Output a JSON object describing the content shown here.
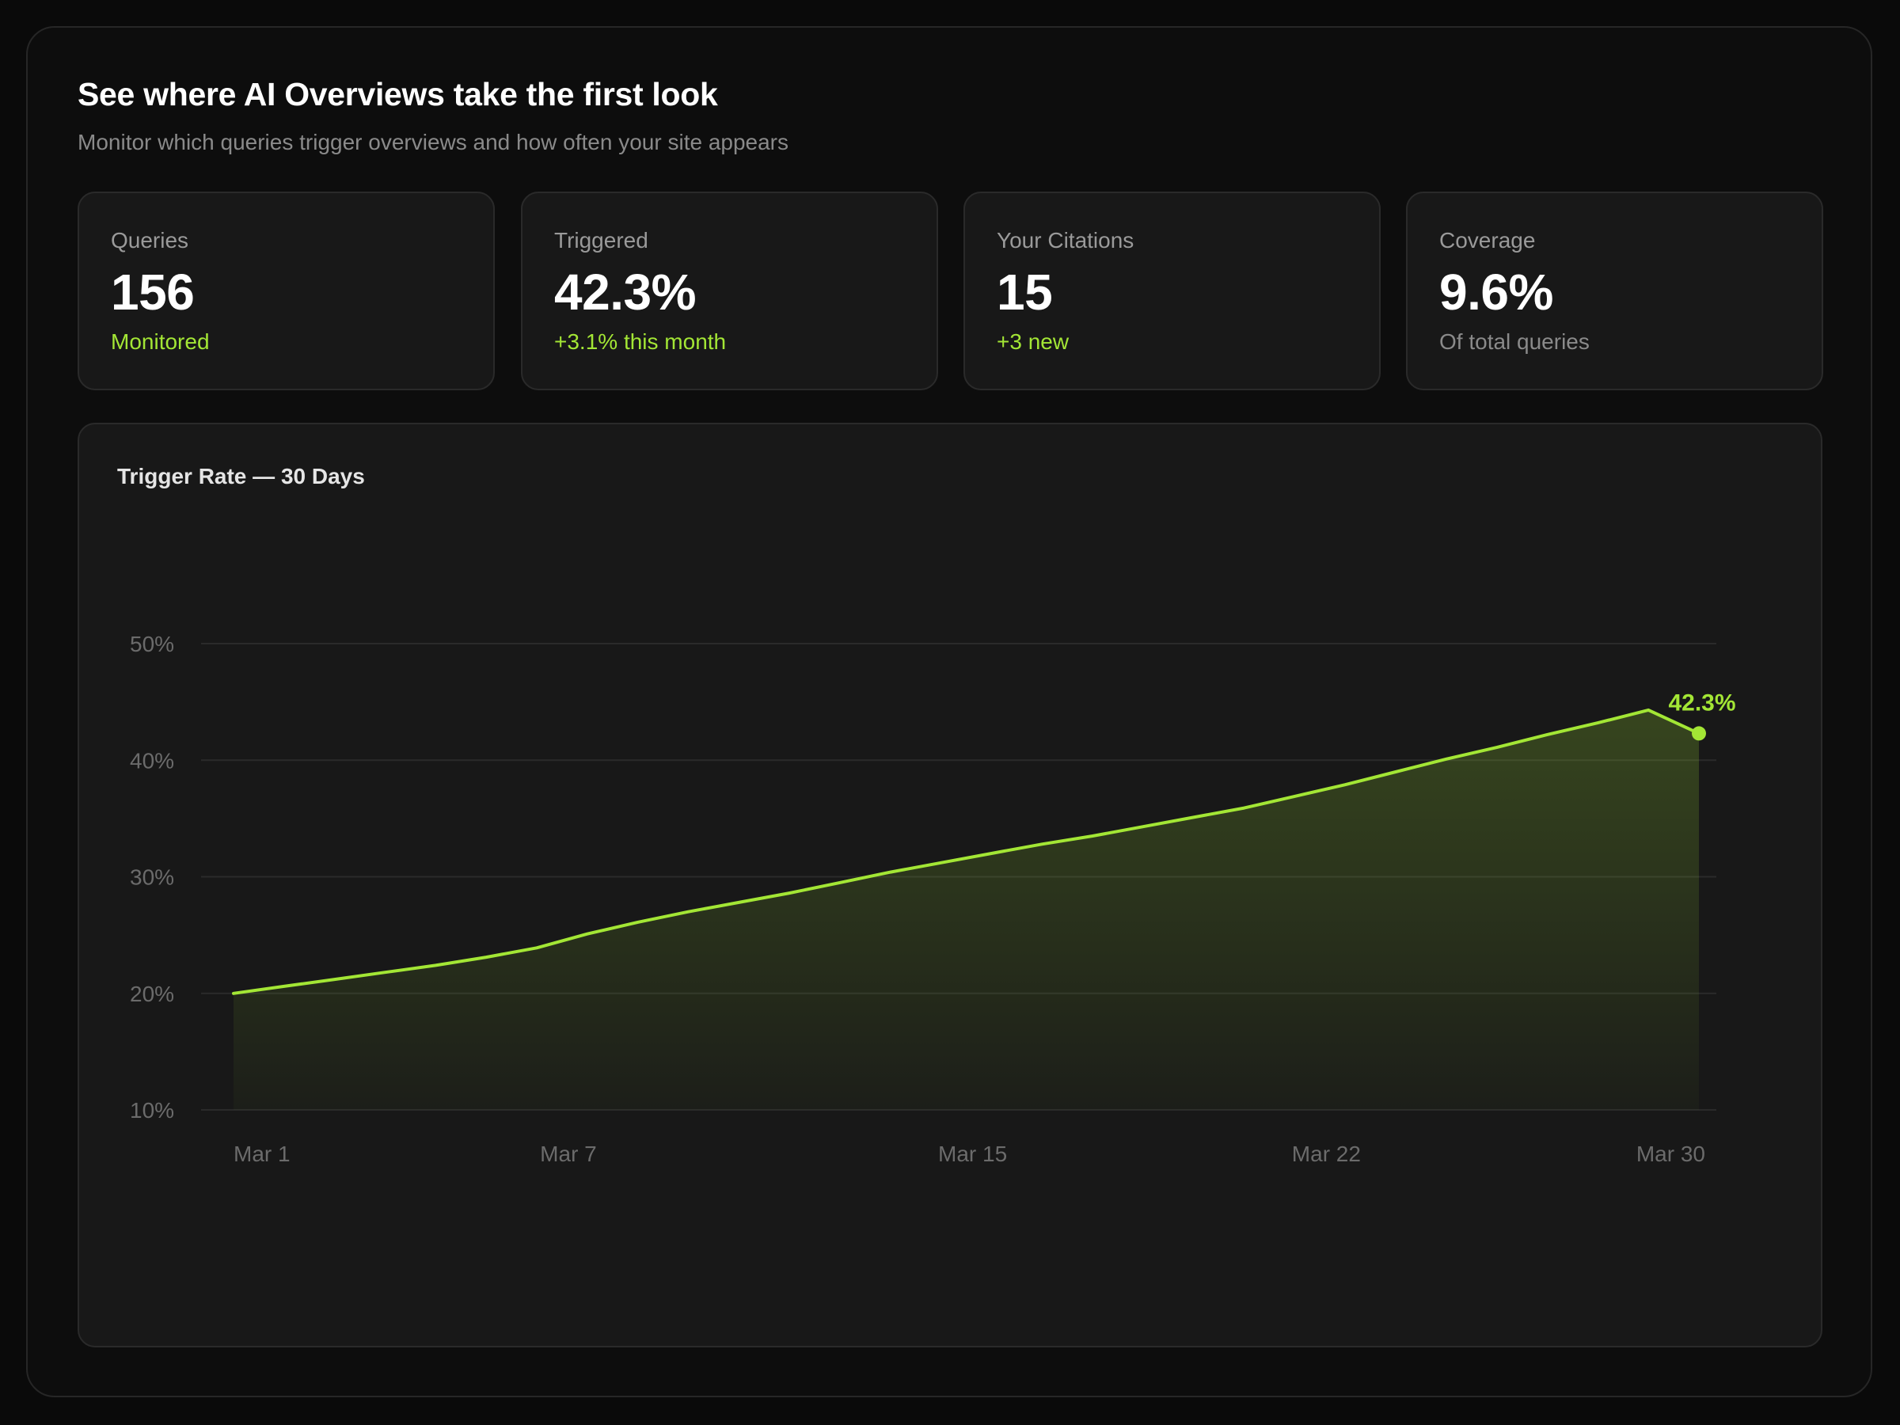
{
  "header": {
    "title": "See where AI Overviews take the first look",
    "subtitle": "Monitor which queries trigger overviews and how often your site appears"
  },
  "stats": [
    {
      "label": "Queries",
      "value": "156",
      "note": "Monitored",
      "note_color": "green"
    },
    {
      "label": "Triggered",
      "value": "42.3%",
      "note": "+3.1% this month",
      "note_color": "green"
    },
    {
      "label": "Your Citations",
      "value": "15",
      "note": "+3 new",
      "note_color": "green"
    },
    {
      "label": "Coverage",
      "value": "9.6%",
      "note": "Of total queries",
      "note_color": "grey"
    }
  ],
  "colors": {
    "accent": "#a3e635",
    "background": "#0a0a0a",
    "card": "#181818",
    "muted_text": "#8a8a8a"
  },
  "chart_data": {
    "type": "area",
    "title": "Trigger Rate — 30 Days",
    "x_tick_labels": [
      "Mar 1",
      "Mar 7",
      "Mar 15",
      "Mar 22",
      "Mar 30"
    ],
    "x_tick_days": [
      1,
      7,
      15,
      22,
      30
    ],
    "xlim": [
      1,
      30
    ],
    "y_tick_labels": [
      "50%",
      "40%",
      "30%",
      "20%",
      "10%"
    ],
    "y_tick_values": [
      50,
      40,
      30,
      20,
      10
    ],
    "ylim": [
      10,
      50
    ],
    "grid": true,
    "series": [
      {
        "x": [
          1,
          2,
          3,
          4,
          5,
          6,
          7,
          8,
          9,
          10,
          11,
          12,
          13,
          14,
          15,
          16,
          17,
          18,
          19,
          20,
          21,
          22,
          23,
          24,
          25,
          26,
          27,
          28,
          29,
          30
        ],
        "values": [
          20.0,
          20.6,
          21.2,
          21.8,
          22.4,
          23.1,
          23.9,
          25.1,
          26.1,
          27.0,
          27.8,
          28.6,
          29.5,
          30.4,
          31.2,
          32.0,
          32.8,
          33.5,
          34.3,
          35.1,
          35.9,
          36.9,
          37.9,
          39.0,
          40.1,
          41.1,
          42.2,
          43.2,
          44.3,
          42.3
        ]
      }
    ],
    "end_label": "42.3%"
  }
}
